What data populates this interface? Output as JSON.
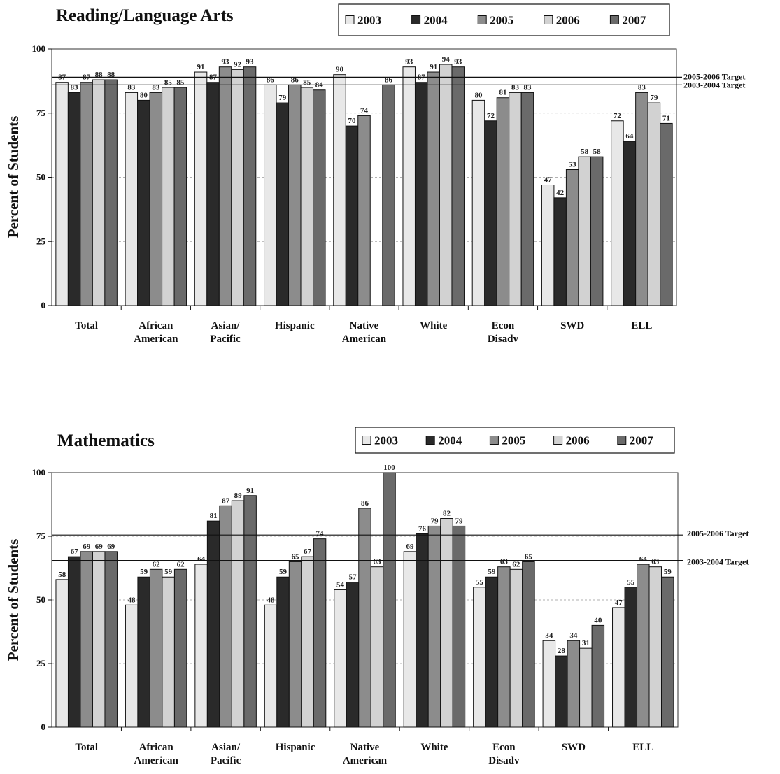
{
  "chart_data": [
    {
      "type": "bar",
      "title": "Reading/Language Arts",
      "ylabel": "Percent of Students",
      "xlabel": "",
      "ylim": [
        0,
        100
      ],
      "yticks": [
        "0",
        "25",
        "50",
        "75",
        "100"
      ],
      "categories": [
        [
          "Total"
        ],
        [
          "African",
          "American"
        ],
        [
          "Asian/",
          "Pacific"
        ],
        [
          "Hispanic"
        ],
        [
          "Native",
          "American"
        ],
        [
          "White"
        ],
        [
          "Econ",
          "Disadv"
        ],
        [
          "SWD"
        ],
        [
          "ELL"
        ]
      ],
      "series": [
        {
          "name": "2003",
          "color": "#e8e8e8",
          "values": [
            87,
            83,
            91,
            86,
            90,
            93,
            80,
            47,
            72
          ]
        },
        {
          "name": "2004",
          "color": "#2a2a2a",
          "values": [
            83,
            80,
            87,
            79,
            70,
            87,
            72,
            42,
            64
          ]
        },
        {
          "name": "2005",
          "color": "#8c8c8c",
          "values": [
            87,
            83,
            93,
            86,
            74,
            91,
            81,
            53,
            83
          ]
        },
        {
          "name": "2006",
          "color": "#d2d2d2",
          "values": [
            88,
            85,
            92,
            85,
            null,
            94,
            83,
            58,
            79
          ]
        },
        {
          "name": "2007",
          "color": "#6a6a6a",
          "values": [
            88,
            85,
            93,
            84,
            86,
            93,
            83,
            58,
            71
          ]
        }
      ],
      "targets": [
        {
          "label": "2005-2006 Target",
          "value": 89
        },
        {
          "label": "2003-2004 Target",
          "value": 86
        }
      ],
      "legend": "top-right",
      "grid": true
    },
    {
      "type": "bar",
      "title": "Mathematics",
      "ylabel": "Percent of Students",
      "xlabel": "",
      "ylim": [
        0,
        100
      ],
      "yticks": [
        "0",
        "25",
        "50",
        "75",
        "100"
      ],
      "categories": [
        [
          "Total"
        ],
        [
          "African",
          "American"
        ],
        [
          "Asian/",
          "Pacific"
        ],
        [
          "Hispanic"
        ],
        [
          "Native",
          "American"
        ],
        [
          "White"
        ],
        [
          "Econ",
          "Disadv"
        ],
        [
          "SWD"
        ],
        [
          "ELL"
        ]
      ],
      "series": [
        {
          "name": "2003",
          "color": "#e8e8e8",
          "values": [
            58,
            48,
            64,
            48,
            54,
            69,
            55,
            34,
            47
          ]
        },
        {
          "name": "2004",
          "color": "#2a2a2a",
          "values": [
            67,
            59,
            81,
            59,
            57,
            76,
            59,
            28,
            55
          ]
        },
        {
          "name": "2005",
          "color": "#8c8c8c",
          "values": [
            69,
            62,
            87,
            65,
            86,
            79,
            63,
            34,
            64
          ]
        },
        {
          "name": "2006",
          "color": "#d2d2d2",
          "values": [
            69,
            59,
            89,
            67,
            63,
            82,
            62,
            31,
            63
          ]
        },
        {
          "name": "2007",
          "color": "#6a6a6a",
          "values": [
            69,
            62,
            91,
            74,
            100,
            79,
            65,
            40,
            59
          ]
        }
      ],
      "targets": [
        {
          "label": "2005-2006 Target",
          "value": 75.5
        },
        {
          "label": "2003-2004 Target",
          "value": 65.5
        }
      ],
      "legend": "top-right",
      "grid": true
    }
  ]
}
